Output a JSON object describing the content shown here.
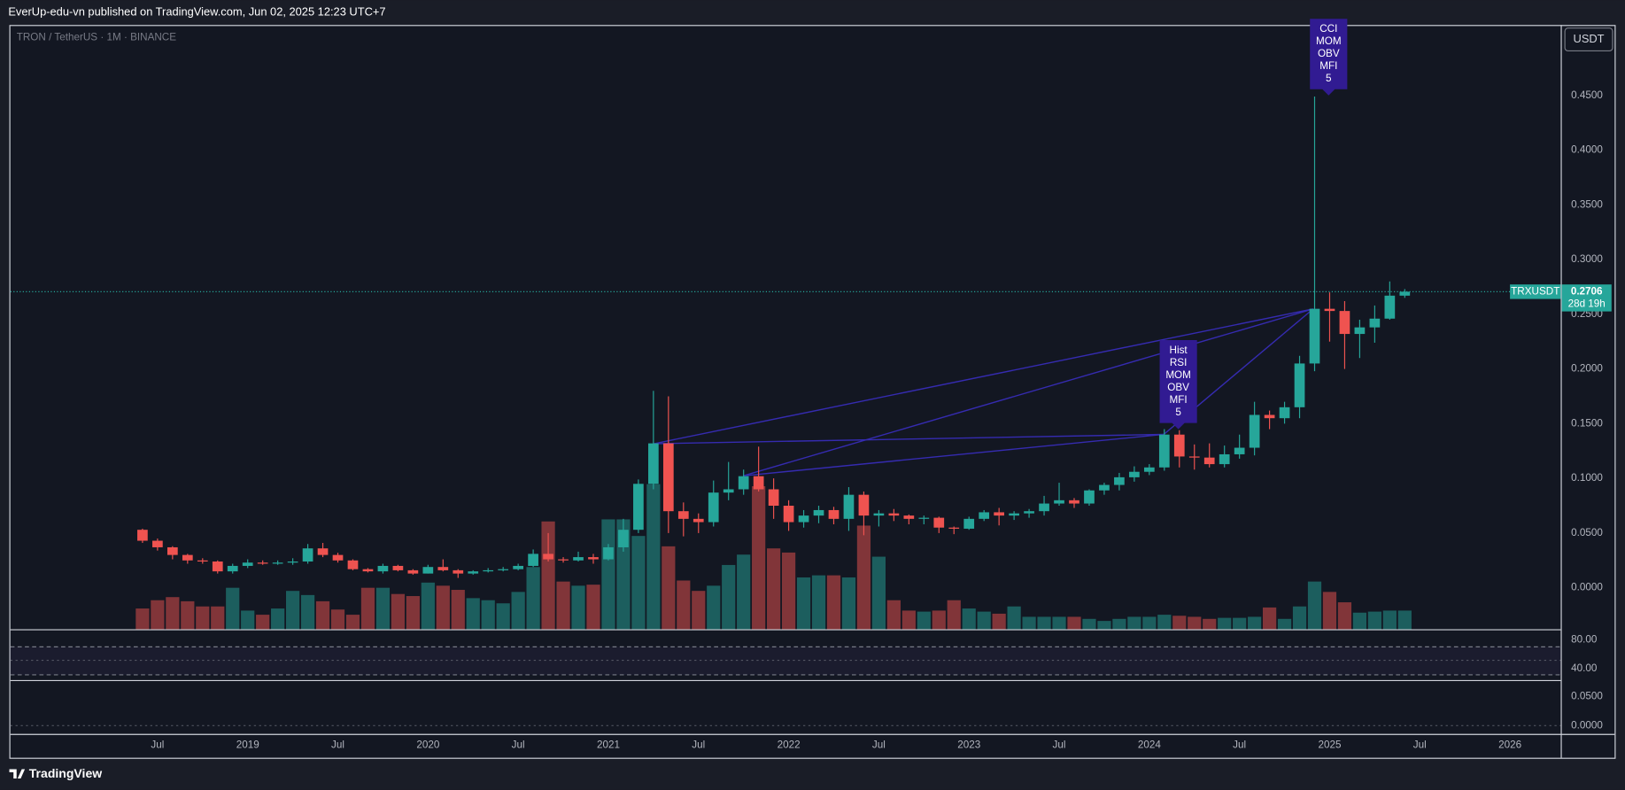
{
  "header": "EverUp-edu-vn published on TradingView.com, Jun 02, 2025 12:23 UTC+7",
  "symbol_info": "TRON / TetherUS · 1M · BINANCE",
  "currency": "USDT",
  "brand": "TradingView",
  "chart_data": {
    "type": "candlestick",
    "x": [
      "2018-06",
      "2018-07",
      "2018-08",
      "2018-09",
      "2018-10",
      "2018-11",
      "2018-12",
      "2019-01",
      "2019-02",
      "2019-03",
      "2019-04",
      "2019-05",
      "2019-06",
      "2019-07",
      "2019-08",
      "2019-09",
      "2019-10",
      "2019-11",
      "2019-12",
      "2020-01",
      "2020-02",
      "2020-03",
      "2020-04",
      "2020-05",
      "2020-06",
      "2020-07",
      "2020-08",
      "2020-09",
      "2020-10",
      "2020-11",
      "2020-12",
      "2021-01",
      "2021-02",
      "2021-03",
      "2021-04",
      "2021-05",
      "2021-06",
      "2021-07",
      "2021-08",
      "2021-09",
      "2021-10",
      "2021-11",
      "2021-12",
      "2022-01",
      "2022-02",
      "2022-03",
      "2022-04",
      "2022-05",
      "2022-06",
      "2022-07",
      "2022-08",
      "2022-09",
      "2022-10",
      "2022-11",
      "2022-12",
      "2023-01",
      "2023-02",
      "2023-03",
      "2023-04",
      "2023-05",
      "2023-06",
      "2023-07",
      "2023-08",
      "2023-09",
      "2023-10",
      "2023-11",
      "2023-12",
      "2024-01",
      "2024-02",
      "2024-03",
      "2024-04",
      "2024-05",
      "2024-06",
      "2024-07",
      "2024-08",
      "2024-09",
      "2024-10",
      "2024-11",
      "2024-12",
      "2025-01",
      "2025-02",
      "2025-03",
      "2025-04",
      "2025-05",
      "2025-06"
    ],
    "open": [
      0.053,
      0.043,
      0.037,
      0.03,
      0.025,
      0.024,
      0.015,
      0.02,
      0.023,
      0.022,
      0.023,
      0.024,
      0.036,
      0.03,
      0.025,
      0.017,
      0.015,
      0.02,
      0.016,
      0.013,
      0.019,
      0.016,
      0.013,
      0.015,
      0.016,
      0.017,
      0.02,
      0.031,
      0.026,
      0.025,
      0.028,
      0.026,
      0.037,
      0.053,
      0.095,
      0.132,
      0.07,
      0.063,
      0.06,
      0.087,
      0.09,
      0.102,
      0.09,
      0.075,
      0.06,
      0.066,
      0.071,
      0.063,
      0.085,
      0.066,
      0.068,
      0.066,
      0.063,
      0.064,
      0.055,
      0.054,
      0.063,
      0.069,
      0.066,
      0.068,
      0.07,
      0.077,
      0.08,
      0.077,
      0.089,
      0.094,
      0.101,
      0.106,
      0.11,
      0.14,
      0.12,
      0.119,
      0.113,
      0.122,
      0.128,
      0.158,
      0.155,
      0.165,
      0.205,
      0.255,
      0.253,
      0.232,
      0.238,
      0.246,
      0.267
    ],
    "high": [
      0.054,
      0.045,
      0.038,
      0.031,
      0.027,
      0.025,
      0.022,
      0.026,
      0.025,
      0.025,
      0.027,
      0.04,
      0.041,
      0.032,
      0.026,
      0.018,
      0.022,
      0.021,
      0.017,
      0.021,
      0.026,
      0.017,
      0.016,
      0.018,
      0.019,
      0.022,
      0.035,
      0.05,
      0.028,
      0.033,
      0.031,
      0.04,
      0.063,
      0.099,
      0.18,
      0.175,
      0.078,
      0.068,
      0.098,
      0.115,
      0.108,
      0.129,
      0.1,
      0.08,
      0.071,
      0.075,
      0.074,
      0.092,
      0.088,
      0.071,
      0.072,
      0.067,
      0.066,
      0.065,
      0.056,
      0.065,
      0.071,
      0.073,
      0.07,
      0.072,
      0.084,
      0.096,
      0.082,
      0.09,
      0.096,
      0.105,
      0.111,
      0.113,
      0.145,
      0.144,
      0.131,
      0.132,
      0.13,
      0.14,
      0.17,
      0.162,
      0.17,
      0.212,
      0.449,
      0.27,
      0.262,
      0.245,
      0.258,
      0.28,
      0.273
    ],
    "low": [
      0.041,
      0.034,
      0.026,
      0.022,
      0.022,
      0.013,
      0.013,
      0.018,
      0.021,
      0.021,
      0.021,
      0.022,
      0.028,
      0.023,
      0.016,
      0.014,
      0.013,
      0.015,
      0.012,
      0.013,
      0.015,
      0.009,
      0.012,
      0.014,
      0.015,
      0.016,
      0.019,
      0.024,
      0.023,
      0.024,
      0.022,
      0.025,
      0.033,
      0.05,
      0.09,
      0.05,
      0.047,
      0.05,
      0.056,
      0.08,
      0.085,
      0.088,
      0.063,
      0.052,
      0.055,
      0.059,
      0.058,
      0.052,
      0.048,
      0.056,
      0.061,
      0.058,
      0.058,
      0.05,
      0.049,
      0.053,
      0.061,
      0.057,
      0.062,
      0.064,
      0.066,
      0.075,
      0.073,
      0.075,
      0.085,
      0.089,
      0.097,
      0.103,
      0.107,
      0.11,
      0.108,
      0.11,
      0.11,
      0.118,
      0.121,
      0.145,
      0.15,
      0.155,
      0.198,
      0.225,
      0.2,
      0.21,
      0.224,
      0.245,
      0.265
    ],
    "close": [
      0.043,
      0.037,
      0.03,
      0.025,
      0.024,
      0.015,
      0.02,
      0.023,
      0.022,
      0.023,
      0.024,
      0.036,
      0.03,
      0.025,
      0.017,
      0.015,
      0.02,
      0.016,
      0.013,
      0.019,
      0.016,
      0.013,
      0.015,
      0.016,
      0.017,
      0.02,
      0.031,
      0.026,
      0.025,
      0.028,
      0.026,
      0.037,
      0.053,
      0.095,
      0.132,
      0.07,
      0.063,
      0.06,
      0.087,
      0.09,
      0.102,
      0.09,
      0.075,
      0.06,
      0.066,
      0.071,
      0.063,
      0.085,
      0.066,
      0.068,
      0.066,
      0.063,
      0.064,
      0.055,
      0.054,
      0.063,
      0.069,
      0.066,
      0.068,
      0.07,
      0.077,
      0.08,
      0.077,
      0.089,
      0.094,
      0.101,
      0.106,
      0.11,
      0.14,
      0.12,
      0.119,
      0.113,
      0.122,
      0.128,
      0.158,
      0.155,
      0.165,
      0.205,
      0.255,
      0.253,
      0.232,
      0.238,
      0.246,
      0.267,
      0.2706
    ],
    "volume": [
      20,
      28,
      31,
      27,
      22,
      22,
      40,
      18,
      14,
      20,
      37,
      33,
      27,
      19,
      14,
      40,
      40,
      34,
      32,
      45,
      42,
      38,
      30,
      28,
      25,
      36,
      60,
      104,
      46,
      42,
      43,
      106,
      106,
      90,
      140,
      80,
      47,
      37,
      42,
      62,
      72,
      138,
      78,
      74,
      50,
      52,
      52,
      50,
      100,
      70,
      28,
      18,
      17,
      18,
      28,
      20,
      17,
      15,
      22,
      12,
      12,
      12,
      12,
      10,
      8,
      10,
      12,
      12,
      14,
      13,
      12,
      10,
      11,
      11,
      12,
      21,
      10,
      22,
      46,
      36,
      26,
      16,
      17,
      18,
      18
    ],
    "up_color": "#26a69a",
    "down_color": "#ef5350",
    "ylim": [
      -0.0379,
      0.5144
    ],
    "yticks": [
      {
        "value": 0,
        "label": "0.0000"
      },
      {
        "value": 0.05,
        "label": "0.0500"
      },
      {
        "value": 0.1,
        "label": "0.1000"
      },
      {
        "value": 0.15,
        "label": "0.1500"
      },
      {
        "value": 0.2,
        "label": "0.2000"
      },
      {
        "value": 0.25,
        "label": "0.2500"
      },
      {
        "value": 0.3,
        "label": "0.3000"
      },
      {
        "value": 0.35,
        "label": "0.3500"
      },
      {
        "value": 0.4,
        "label": "0.4000"
      },
      {
        "value": 0.45,
        "label": "0.4500"
      }
    ],
    "xticks": [
      {
        "value": "2018-07",
        "label": "Jul"
      },
      {
        "value": "2019-01",
        "label": "2019"
      },
      {
        "value": "2019-07",
        "label": "Jul"
      },
      {
        "value": "2020-01",
        "label": "2020"
      },
      {
        "value": "2020-07",
        "label": "Jul"
      },
      {
        "value": "2021-01",
        "label": "2021"
      },
      {
        "value": "2021-07",
        "label": "Jul"
      },
      {
        "value": "2022-01",
        "label": "2022"
      },
      {
        "value": "2022-07",
        "label": "Jul"
      },
      {
        "value": "2023-01",
        "label": "2023"
      },
      {
        "value": "2023-07",
        "label": "Jul"
      },
      {
        "value": "2024-01",
        "label": "2024"
      },
      {
        "value": "2024-07",
        "label": "Jul"
      },
      {
        "value": "2025-01",
        "label": "2025"
      },
      {
        "value": "2025-07",
        "label": "Jul"
      },
      {
        "value": "2026-01",
        "label": "2026"
      }
    ],
    "symbol_tag": "TRXUSDT",
    "countdown": "28d 19h",
    "rsi_ylim": [
      24.3,
      92.9
    ],
    "rsi_yticks": [
      {
        "value": 80,
        "label": "80.00"
      },
      {
        "value": 40,
        "label": "40.00"
      }
    ],
    "macd_ylim": [
      -0.0143,
      0.0768
    ],
    "macd_yticks": [
      {
        "value": 0.05,
        "label": "0.0500"
      },
      {
        "value": 0,
        "label": "0.0000"
      }
    ],
    "annotations": [
      {
        "lines": [
          "Hist",
          "RSI",
          "MOM",
          "OBV",
          "MFI",
          "5"
        ]
      },
      {
        "lines": [
          "CCI",
          "MOM",
          "OBV",
          "MFI",
          "5"
        ]
      }
    ]
  }
}
